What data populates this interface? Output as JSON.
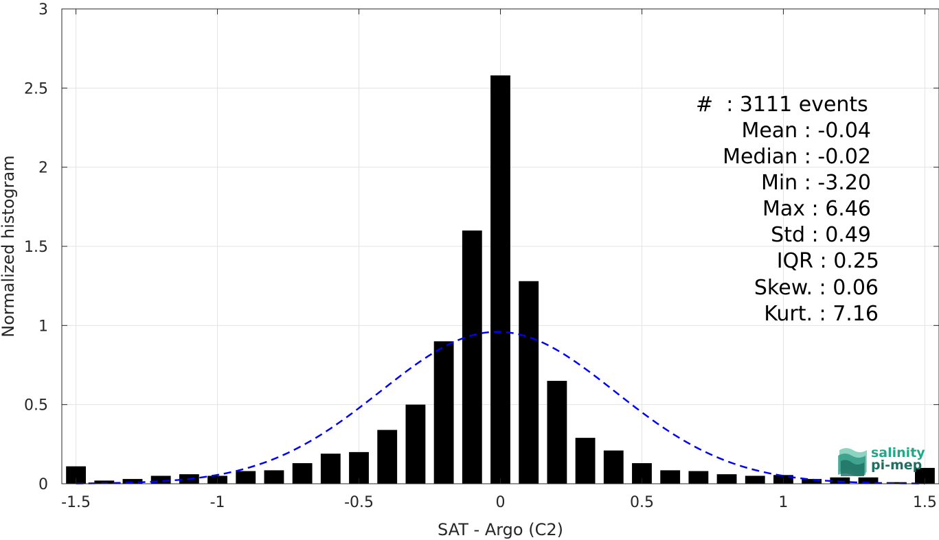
{
  "chart_data": {
    "type": "bar",
    "xlabel": "SAT - Argo (C2)",
    "ylabel": "Normalized histogram",
    "xlim": [
      -1.55,
      1.55
    ],
    "ylim": [
      0,
      3
    ],
    "xticks": [
      -1.5,
      -1,
      -0.5,
      0,
      0.5,
      1,
      1.5
    ],
    "xtick_labels": [
      "-1.5",
      "-1",
      "-0.5",
      "0",
      "0.5",
      "1",
      "1.5"
    ],
    "yticks": [
      0,
      0.5,
      1,
      1.5,
      2,
      2.5,
      3
    ],
    "ytick_labels": [
      "0",
      "0.5",
      "1",
      "1.5",
      "2",
      "2.5",
      "3"
    ],
    "grid": true,
    "bin_width": 0.1,
    "bar_width_fraction": 0.7,
    "bins": [
      {
        "x": -1.5,
        "y": 0.11
      },
      {
        "x": -1.4,
        "y": 0.02
      },
      {
        "x": -1.3,
        "y": 0.03
      },
      {
        "x": -1.2,
        "y": 0.05
      },
      {
        "x": -1.1,
        "y": 0.06
      },
      {
        "x": -1.0,
        "y": 0.05
      },
      {
        "x": -0.9,
        "y": 0.08
      },
      {
        "x": -0.8,
        "y": 0.085
      },
      {
        "x": -0.7,
        "y": 0.13
      },
      {
        "x": -0.6,
        "y": 0.19
      },
      {
        "x": -0.5,
        "y": 0.2
      },
      {
        "x": -0.4,
        "y": 0.34
      },
      {
        "x": -0.3,
        "y": 0.5
      },
      {
        "x": -0.2,
        "y": 0.9
      },
      {
        "x": -0.1,
        "y": 1.6
      },
      {
        "x": 0.0,
        "y": 2.58
      },
      {
        "x": 0.1,
        "y": 1.28
      },
      {
        "x": 0.2,
        "y": 0.65
      },
      {
        "x": 0.3,
        "y": 0.29
      },
      {
        "x": 0.4,
        "y": 0.21
      },
      {
        "x": 0.5,
        "y": 0.13
      },
      {
        "x": 0.6,
        "y": 0.085
      },
      {
        "x": 0.7,
        "y": 0.08
      },
      {
        "x": 0.8,
        "y": 0.06
      },
      {
        "x": 0.9,
        "y": 0.05
      },
      {
        "x": 1.0,
        "y": 0.055
      },
      {
        "x": 1.1,
        "y": 0.03
      },
      {
        "x": 1.2,
        "y": 0.04
      },
      {
        "x": 1.3,
        "y": 0.04
      },
      {
        "x": 1.4,
        "y": 0.01
      },
      {
        "x": 1.5,
        "y": 0.1
      }
    ],
    "gaussian_fit": {
      "mean": -0.01,
      "std": 0.415,
      "amplitude": 0.96,
      "x_range": [
        -1.5,
        1.5
      ],
      "style": "dashed",
      "color": "#0000ff"
    },
    "bar_color": "#000000",
    "stats": {
      "count": "#  : 3111 events",
      "mean": "Mean : -0.04",
      "median": "Median : -0.02",
      "min": "Min : -3.20",
      "max": "Max : 6.46",
      "std": "Std : 0.49",
      "iqr": "IQR : 0.25",
      "skew": "Skew. : 0.06",
      "kurt": "Kurt. : 7.16"
    }
  },
  "logo": {
    "line1": "salinity",
    "line2": "pi-mep",
    "color1": "#1fa88a",
    "color2": "#1d6f63"
  }
}
